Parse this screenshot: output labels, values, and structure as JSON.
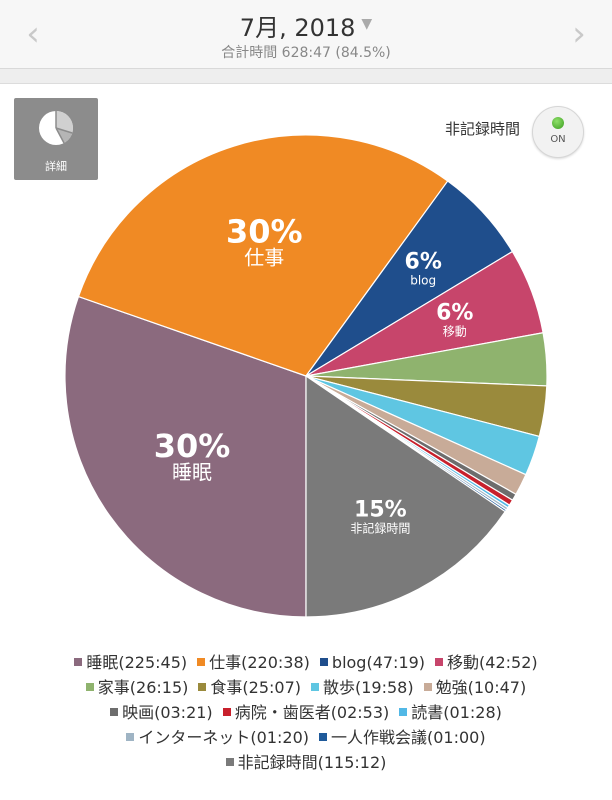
{
  "header": {
    "month": "7月, 2018",
    "total": "合計時間 628:47 (84.5%)",
    "prev_icon": "chevron-left-icon",
    "next_icon": "chevron-right-icon"
  },
  "controls": {
    "detail_label": "詳細",
    "detail_icon": "pie-chart-icon",
    "toggle_label": "非記録時間",
    "toggle_state": "ON"
  },
  "chart_data": {
    "type": "pie",
    "start": "bottom",
    "direction": "clockwise",
    "slices": [
      {
        "label": "睡眠",
        "time": "225:45",
        "value": 225.75,
        "color": "#8b6a7e",
        "pct": "30%"
      },
      {
        "label": "仕事",
        "time": "220:38",
        "value": 220.63,
        "color": "#f08a24",
        "pct": "30%"
      },
      {
        "label": "blog",
        "time": "47:19",
        "value": 47.32,
        "color": "#1f4e8c",
        "pct": "6%"
      },
      {
        "label": "移動",
        "time": "42:52",
        "value": 42.87,
        "color": "#c7456b",
        "pct": "6%"
      },
      {
        "label": "家事",
        "time": "26:15",
        "value": 26.25,
        "color": "#8fb36e",
        "pct": ""
      },
      {
        "label": "食事",
        "time": "25:07",
        "value": 25.12,
        "color": "#9a8a3c",
        "pct": ""
      },
      {
        "label": "散歩",
        "time": "19:58",
        "value": 19.97,
        "color": "#5fc6e2",
        "pct": ""
      },
      {
        "label": "勉強",
        "time": "10:47",
        "value": 10.78,
        "color": "#c8ab98",
        "pct": ""
      },
      {
        "label": "映画",
        "time": "03:21",
        "value": 3.35,
        "color": "#6d6d6d",
        "pct": ""
      },
      {
        "label": "病院・歯医者",
        "time": "02:53",
        "value": 2.88,
        "color": "#c8202c",
        "pct": ""
      },
      {
        "label": "読書",
        "time": "01:28",
        "value": 1.47,
        "color": "#52b8e6",
        "pct": ""
      },
      {
        "label": "インターネット",
        "time": "01:20",
        "value": 1.33,
        "color": "#9fb4c4",
        "pct": ""
      },
      {
        "label": "一人作戦会議",
        "time": "01:00",
        "value": 1.0,
        "color": "#1f5a9a",
        "pct": ""
      },
      {
        "label": "非記録時間",
        "time": "115:12",
        "value": 115.2,
        "color": "#7a7a7a",
        "pct": "15%"
      }
    ]
  },
  "legend": [
    [
      "睡眠(225:45)",
      "仕事(220:38)",
      "blog(47:19)",
      "移動(42:52)"
    ],
    [
      "家事(26:15)",
      "食事(25:07)",
      "散歩(19:58)",
      "勉強(10:47)"
    ],
    [
      "映画(03:21)",
      "病院・歯医者(02:53)",
      "読書(01:28)"
    ],
    [
      "インターネット(01:20)",
      "一人作戦会議(01:00)"
    ],
    [
      "非記録時間(115:12)"
    ]
  ]
}
